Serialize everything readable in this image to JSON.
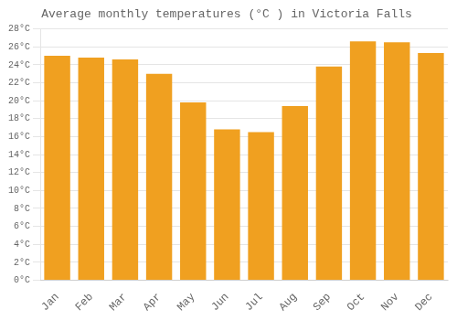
{
  "chart_data": {
    "type": "bar",
    "title": "Average monthly temperatures (°C ) in Victoria Falls",
    "categories": [
      "Jan",
      "Feb",
      "Mar",
      "Apr",
      "May",
      "Jun",
      "Jul",
      "Aug",
      "Sep",
      "Oct",
      "Nov",
      "Dec"
    ],
    "values": [
      25.0,
      24.8,
      24.6,
      23.0,
      19.8,
      16.8,
      16.5,
      19.4,
      23.8,
      26.6,
      26.5,
      25.3
    ],
    "color": "#F0A020",
    "ylim": [
      0,
      28
    ],
    "yticks": [
      {
        "value": 0,
        "label": "0°C"
      },
      {
        "value": 2,
        "label": "2°C"
      },
      {
        "value": 4,
        "label": "4°C"
      },
      {
        "value": 6,
        "label": "6°C"
      },
      {
        "value": 8,
        "label": "8°C"
      },
      {
        "value": 10,
        "label": "10°C"
      },
      {
        "value": 12,
        "label": "12°C"
      },
      {
        "value": 14,
        "label": "14°C"
      },
      {
        "value": 16,
        "label": "16°C"
      },
      {
        "value": 18,
        "label": "18°C"
      },
      {
        "value": 20,
        "label": "20°C"
      },
      {
        "value": 22,
        "label": "22°C"
      },
      {
        "value": 24,
        "label": "24°C"
      },
      {
        "value": 26,
        "label": "26°C"
      },
      {
        "value": 28,
        "label": "28°C"
      }
    ],
    "grid": true
  }
}
